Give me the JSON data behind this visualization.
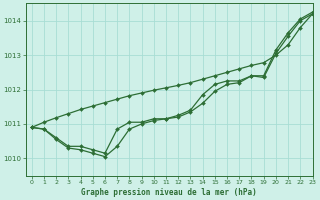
{
  "title": "Graphe pression niveau de la mer (hPa)",
  "background_color": "#cff0e8",
  "grid_color": "#a8ddd4",
  "line_color": "#2d6e35",
  "xlim": [
    -0.5,
    23
  ],
  "ylim": [
    1009.5,
    1014.5
  ],
  "yticks": [
    1010,
    1011,
    1012,
    1013,
    1014
  ],
  "xticks": [
    0,
    1,
    2,
    3,
    4,
    5,
    6,
    7,
    8,
    9,
    10,
    11,
    12,
    13,
    14,
    15,
    16,
    17,
    18,
    19,
    20,
    21,
    22,
    23
  ],
  "series1": [
    1010.9,
    1010.85,
    1010.6,
    1010.35,
    1010.35,
    1010.25,
    1010.15,
    1010.85,
    1011.05,
    1011.05,
    1011.15,
    1011.15,
    1011.25,
    1011.4,
    1011.85,
    1012.15,
    1012.25,
    1012.25,
    1012.4,
    1012.4,
    1013.15,
    1013.65,
    1014.05,
    1014.25
  ],
  "series2": [
    1010.9,
    1010.85,
    1010.55,
    1010.3,
    1010.25,
    1010.15,
    1010.05,
    1010.35,
    1010.85,
    1011.0,
    1011.1,
    1011.15,
    1011.2,
    1011.35,
    1011.6,
    1011.95,
    1012.15,
    1012.2,
    1012.4,
    1012.35,
    1013.05,
    1013.55,
    1014.0,
    1014.2
  ],
  "series3_straight": [
    1010.9,
    1011.05,
    1011.18,
    1011.3,
    1011.42,
    1011.52,
    1011.62,
    1011.72,
    1011.82,
    1011.9,
    1011.98,
    1012.05,
    1012.12,
    1012.2,
    1012.3,
    1012.4,
    1012.5,
    1012.6,
    1012.7,
    1012.78,
    1013.0,
    1013.3,
    1013.8,
    1014.2
  ]
}
